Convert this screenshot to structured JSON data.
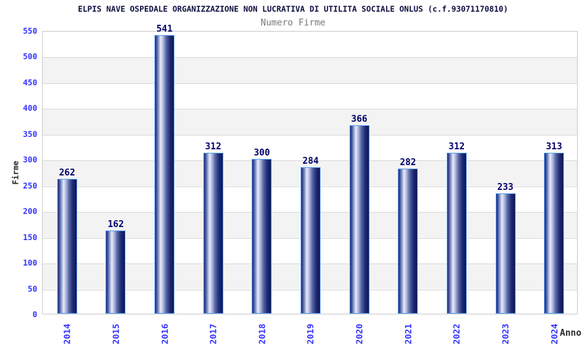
{
  "header": {
    "title": "ELPIS NAVE OSPEDALE ORGANIZZAZIONE NON LUCRATIVA DI UTILITA SOCIALE ONLUS (c.f.93071170810)",
    "subtitle": "Numero Firme"
  },
  "chart_data": {
    "type": "bar",
    "title": "Numero Firme",
    "categories": [
      "2014",
      "2015",
      "2016",
      "2017",
      "2018",
      "2019",
      "2020",
      "2021",
      "2022",
      "2023",
      "2024"
    ],
    "values": [
      262,
      162,
      541,
      312,
      300,
      284,
      366,
      282,
      312,
      233,
      313
    ],
    "xlabel": "Anno",
    "ylabel": "Firme",
    "ylim": [
      0,
      550
    ],
    "ytick_step": 50,
    "yticks": [
      0,
      50,
      100,
      150,
      200,
      250,
      300,
      350,
      400,
      450,
      500,
      550
    ],
    "grid": "horizontal-bands",
    "legend": "none",
    "colors": {
      "background": "#ffffff",
      "band_gray": "#f3f3f3",
      "gridline": "#d9d9d9",
      "plot_border": "#cccccc",
      "title": "#101043",
      "subtitle": "#7a7a7a",
      "axis_tick_text": "#3333ff",
      "axis_title_text": "#262626",
      "value_label": "#000066",
      "bar_border": "#58a0f0",
      "bar_gradient": [
        "#1a2470 0%",
        "#5a6cb0 12%",
        "#e9ecfa 30%",
        "#a9b3dc 44%",
        "#55669f 60%",
        "#1f2a78 80%",
        "#0e1650 100%"
      ]
    }
  }
}
